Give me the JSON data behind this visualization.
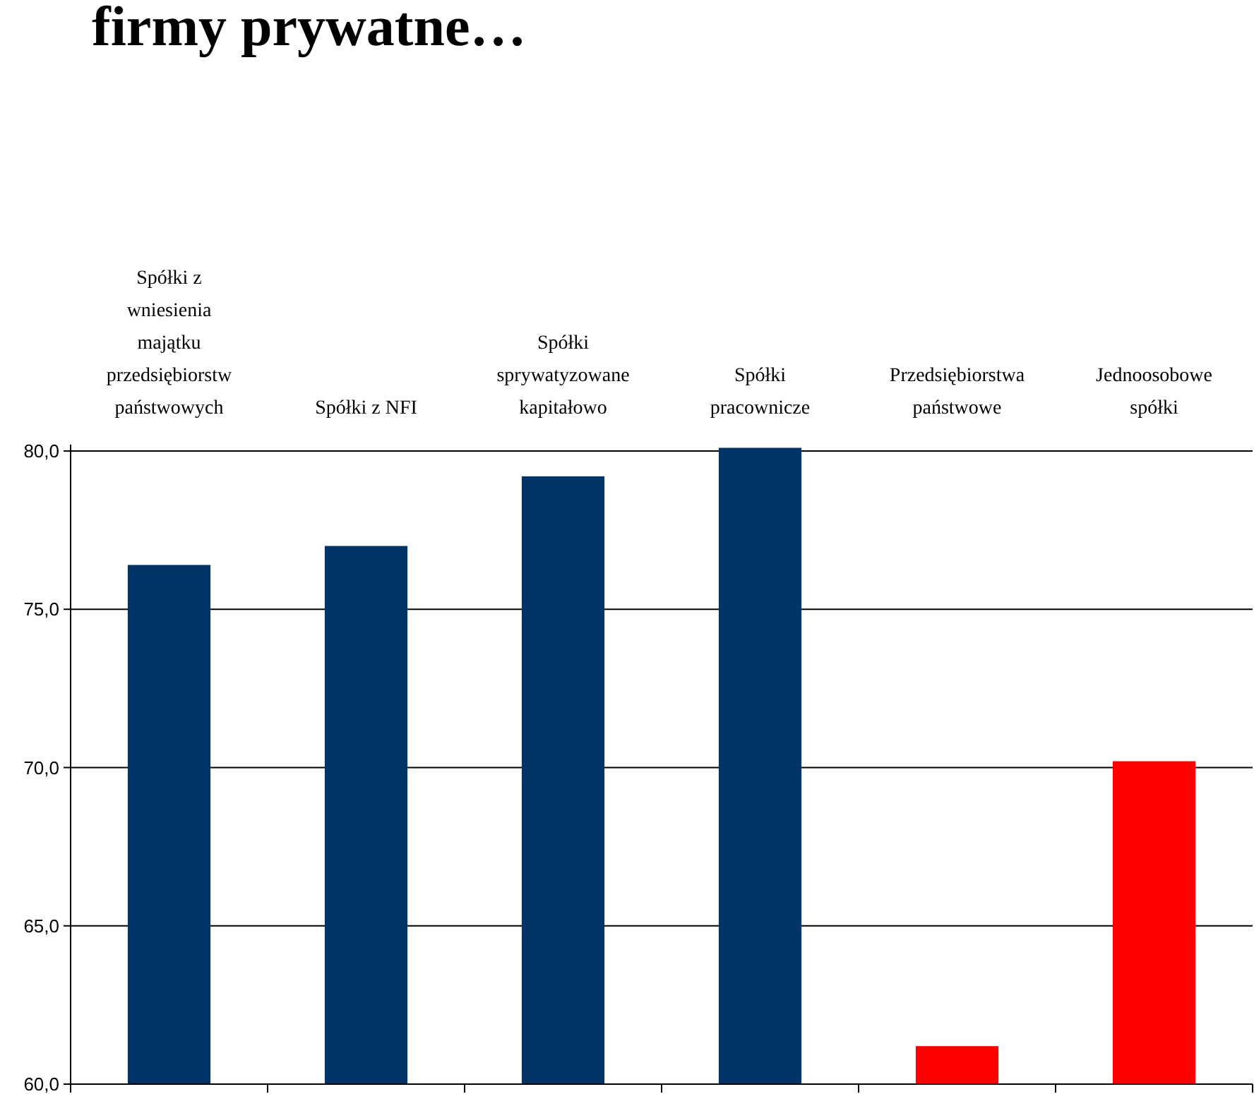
{
  "chart_data": {
    "type": "bar",
    "title": "firmy prywatne…",
    "categories": [
      "Spółki z wniesienia majątku przedsiębiorstw państwowych",
      "Spółki z NFI",
      "Spółki sprywatyzowane kapitałowo",
      "Spółki pracownicze",
      "Przedsiębiorstwa państwowe",
      "Jednoosobowe spółki"
    ],
    "values": [
      76.4,
      77.0,
      79.2,
      80.1,
      61.2,
      70.2
    ],
    "colors": [
      "#003366",
      "#003366",
      "#003366",
      "#003366",
      "#ff0000",
      "#ff0000"
    ],
    "ylim": [
      60,
      80.2
    ],
    "yticks": [
      {
        "value": 60,
        "label": "60,0"
      },
      {
        "value": 65,
        "label": "65,0"
      },
      {
        "value": 70,
        "label": "70,0"
      },
      {
        "value": 75,
        "label": "75,0"
      },
      {
        "value": 80,
        "label": "80,0"
      }
    ],
    "grid": "y"
  }
}
